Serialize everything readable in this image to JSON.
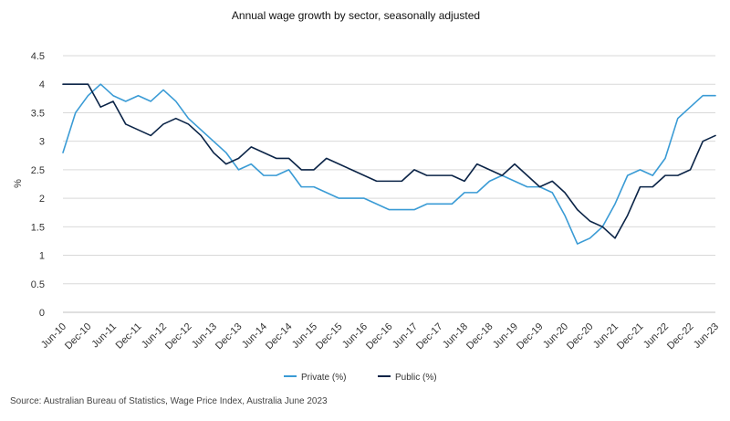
{
  "chart_data": {
    "type": "line",
    "title": "Annual wage growth by sector, seasonally adjusted",
    "ylabel": "%",
    "xlabel": "",
    "ylim": [
      0,
      4.5
    ],
    "yticks": [
      "0",
      "0.5",
      "1",
      "1.5",
      "2",
      "2.5",
      "3",
      "3.5",
      "4",
      "4.5"
    ],
    "ytick_values": [
      0,
      0.5,
      1,
      1.5,
      2,
      2.5,
      3,
      3.5,
      4,
      4.5
    ],
    "x": [
      "Jun-10",
      "Sep-10",
      "Dec-10",
      "Mar-11",
      "Jun-11",
      "Sep-11",
      "Dec-11",
      "Mar-12",
      "Jun-12",
      "Sep-12",
      "Dec-12",
      "Mar-13",
      "Jun-13",
      "Sep-13",
      "Dec-13",
      "Mar-14",
      "Jun-14",
      "Sep-14",
      "Dec-14",
      "Mar-15",
      "Jun-15",
      "Sep-15",
      "Dec-15",
      "Mar-16",
      "Jun-16",
      "Sep-16",
      "Dec-16",
      "Mar-17",
      "Jun-17",
      "Sep-17",
      "Dec-17",
      "Mar-18",
      "Jun-18",
      "Sep-18",
      "Dec-18",
      "Mar-19",
      "Jun-19",
      "Sep-19",
      "Dec-19",
      "Mar-20",
      "Jun-20",
      "Sep-20",
      "Dec-20",
      "Mar-21",
      "Jun-21",
      "Sep-21",
      "Dec-21",
      "Mar-22",
      "Jun-22",
      "Sep-22",
      "Dec-22",
      "Mar-23",
      "Jun-23"
    ],
    "xticks": [
      "Jun-10",
      "Dec-10",
      "Jun-11",
      "Dec-11",
      "Jun-12",
      "Dec-12",
      "Jun-13",
      "Dec-13",
      "Jun-14",
      "Dec-14",
      "Jun-15",
      "Dec-15",
      "Jun-16",
      "Dec-16",
      "Jun-17",
      "Dec-17",
      "Jun-18",
      "Dec-18",
      "Jun-19",
      "Dec-19",
      "Jun-20",
      "Dec-20",
      "Jun-21",
      "Dec-21",
      "Jun-22",
      "Dec-22",
      "Jun-23"
    ],
    "series": [
      {
        "name": "Private (%)",
        "color": "#3a9bd5",
        "values": [
          2.8,
          3.5,
          3.8,
          4.0,
          3.8,
          3.7,
          3.8,
          3.7,
          3.9,
          3.7,
          3.4,
          3.2,
          3.0,
          2.8,
          2.5,
          2.6,
          2.4,
          2.4,
          2.5,
          2.2,
          2.2,
          2.1,
          2.0,
          2.0,
          2.0,
          1.9,
          1.8,
          1.8,
          1.8,
          1.9,
          1.9,
          1.9,
          2.1,
          2.1,
          2.3,
          2.4,
          2.3,
          2.2,
          2.2,
          2.1,
          1.7,
          1.2,
          1.3,
          1.5,
          1.9,
          2.4,
          2.5,
          2.4,
          2.7,
          3.4,
          3.6,
          3.8,
          3.8
        ]
      },
      {
        "name": "Public (%)",
        "color": "#0b2447",
        "values": [
          4.0,
          4.0,
          4.0,
          3.6,
          3.7,
          3.3,
          3.2,
          3.1,
          3.3,
          3.4,
          3.3,
          3.1,
          2.8,
          2.6,
          2.7,
          2.9,
          2.8,
          2.7,
          2.7,
          2.5,
          2.5,
          2.7,
          2.6,
          2.5,
          2.4,
          2.3,
          2.3,
          2.3,
          2.5,
          2.4,
          2.4,
          2.4,
          2.3,
          2.6,
          2.5,
          2.4,
          2.6,
          2.4,
          2.2,
          2.3,
          2.1,
          1.8,
          1.6,
          1.5,
          1.3,
          1.7,
          2.2,
          2.2,
          2.4,
          2.4,
          2.5,
          3.0,
          3.1
        ]
      }
    ],
    "legend_placement": "bottom-center",
    "grid": true
  },
  "source": "Source: Australian Bureau of Statistics, Wage Price Index, Australia June 2023"
}
